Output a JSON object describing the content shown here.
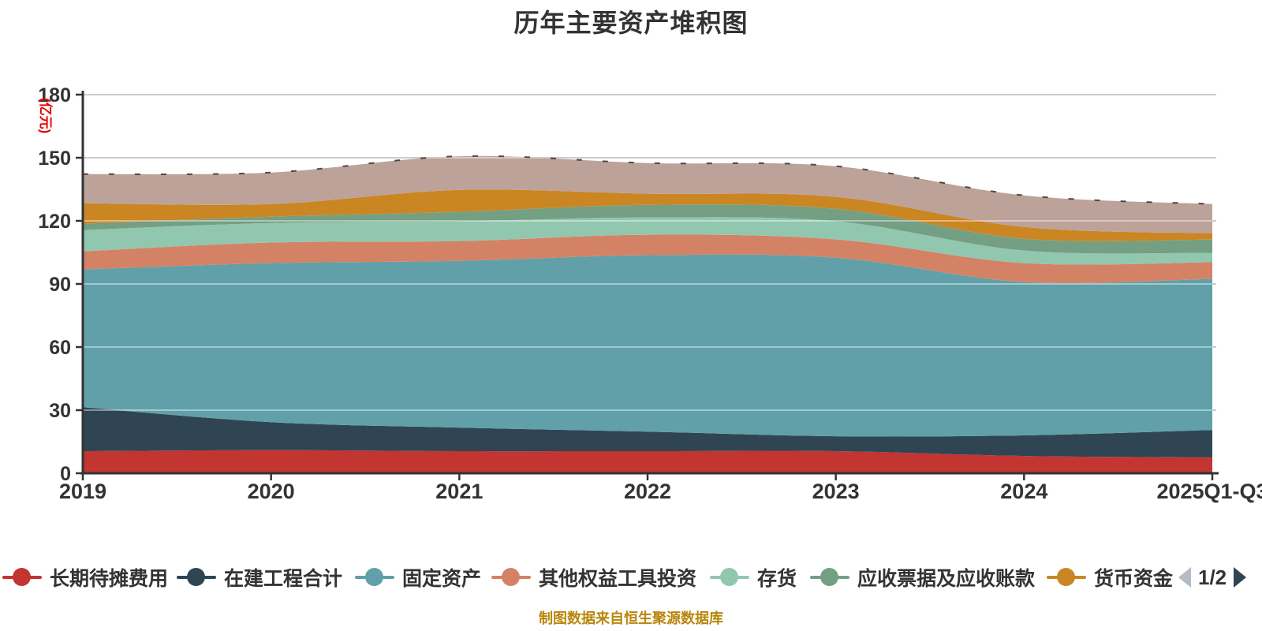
{
  "title": "历年主要资产堆积图",
  "footer_note": "制图数据来自恒生聚源数据库",
  "legend": {
    "page_indicator": "1/2",
    "prev_arrow_color": "#b6bcc4",
    "next_arrow_color": "#2f4554",
    "label_color": "#333333"
  },
  "axis": {
    "y_name": "(亿元)",
    "y_name_color": "#e60000",
    "label_color": "#333333",
    "axis_line_color": "#333333",
    "grid_line_color": "#cccccc",
    "x_labels": [
      "2019",
      "2020",
      "2021",
      "2022",
      "2023",
      "2024",
      "2025Q1-Q3"
    ],
    "y_tick_labels": [
      "0",
      "30",
      "60",
      "90",
      "120",
      "150",
      "180"
    ]
  },
  "chart_data": {
    "type": "area",
    "stacked": true,
    "smooth": true,
    "title": "历年主要资产堆积图",
    "categories": [
      "2019",
      "2020",
      "2021",
      "2022",
      "2023",
      "2024",
      "2025Q1-Q3"
    ],
    "xlabel": "",
    "ylabel": "(亿元)",
    "ylim": [
      0,
      180
    ],
    "y_interval": 30,
    "grid": true,
    "legend_position": "bottom",
    "series": [
      {
        "name": "长期待摊费用",
        "color": "#c23531",
        "legend_page": 1,
        "values": [
          10.5,
          11.0,
          10.5,
          10.5,
          10.5,
          8.2,
          7.5
        ]
      },
      {
        "name": "在建工程合计",
        "color": "#2f4554",
        "legend_page": 1,
        "values": [
          20.9,
          13.3,
          11.2,
          9.3,
          7.1,
          9.8,
          13.1
        ]
      },
      {
        "name": "固定资产",
        "color": "#61a0a8",
        "legend_page": 1,
        "values": [
          65.5,
          75.6,
          79.3,
          83.9,
          84.9,
          72.9,
          71.8
        ]
      },
      {
        "name": "其他权益工具投资",
        "color": "#d48265",
        "legend_page": 1,
        "values": [
          8.6,
          9.8,
          9.4,
          9.7,
          8.7,
          9.0,
          7.9
        ]
      },
      {
        "name": "存货",
        "color": "#91c7ae",
        "legend_page": 1,
        "values": [
          10.1,
          9.3,
          9.4,
          8.2,
          8.6,
          6.0,
          4.5
        ]
      },
      {
        "name": "应收票据及应收账款",
        "color": "#749f83",
        "legend_page": 1,
        "values": [
          3.0,
          3.0,
          4.5,
          6.0,
          5.9,
          5.6,
          6.3
        ]
      },
      {
        "name": "货币资金",
        "color": "#ca8622",
        "legend_page": 1,
        "values": [
          9.8,
          6.0,
          10.4,
          5.3,
          5.7,
          5.6,
          3.0
        ]
      },
      {
        "name": "",
        "color": "#bda29a",
        "legend_page": 2,
        "values": [
          13.8,
          15.0,
          16.0,
          14.6,
          14.6,
          15.0,
          13.9
        ]
      }
    ]
  }
}
